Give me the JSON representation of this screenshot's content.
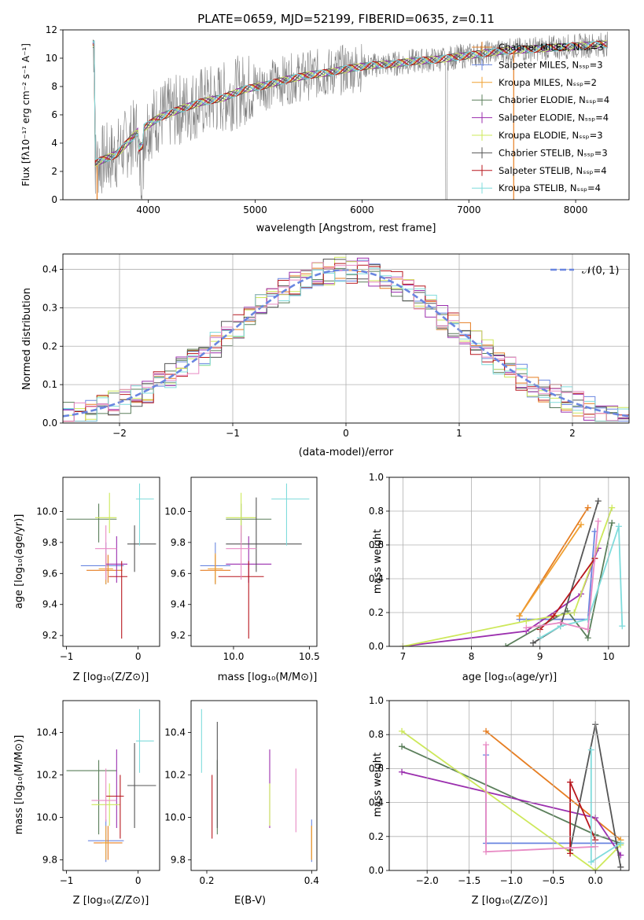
{
  "figure_title": "PLATE=0659, MJD=52199, FIBERID=0635, z=0.11",
  "series_colors": [
    "#6a86e0",
    "#e67e22",
    "#f0a030",
    "#5b7f5b",
    "#9b2fae",
    "#cde85a",
    "#555555",
    "#b8171e",
    "#7fdcdc",
    "#e88ac4"
  ],
  "chart_data": [
    {
      "id": "spectrum",
      "type": "line",
      "title": "PLATE=0659, MJD=52199, FIBERID=0635, z=0.11",
      "xlabel": "wavelength [Angstrom, rest frame]",
      "ylabel": "Flux [fλ10⁻¹⁷ erg cm⁻² s⁻¹ A⁻¹]",
      "xlim": [
        3200,
        8500
      ],
      "ylim": [
        0,
        12
      ],
      "xticks": [
        "4000",
        "5000",
        "6000",
        "7000",
        "8000"
      ],
      "yticks": [
        "0",
        "2",
        "4",
        "6",
        "8",
        "10",
        "12"
      ],
      "legend_position": "top-right",
      "data_continuum": {
        "x": [
          3500,
          3700,
          3900,
          4100,
          4300,
          4500,
          4700,
          4900,
          5100,
          5300,
          5500,
          5700,
          5900,
          6100,
          6300,
          6500,
          6700,
          6900,
          7100,
          7300,
          7500,
          7700,
          7900,
          8100,
          8300
        ],
        "y": [
          2.6,
          3.2,
          4.8,
          5.8,
          6.4,
          6.9,
          7.2,
          7.8,
          8.1,
          8.5,
          8.8,
          9.0,
          9.3,
          9.5,
          9.6,
          9.8,
          9.9,
          10.1,
          10.3,
          10.5,
          10.6,
          10.7,
          10.8,
          10.9,
          11.0
        ]
      },
      "legend": [
        "Chabrier MILES, Nₛₛₚ=3",
        "Salpeter MILES, Nₛₛₚ=3",
        "Kroupa MILES, Nₛₛₚ=2",
        "Chabrier ELODIE, Nₛₛₚ=4",
        "Salpeter ELODIE, Nₛₛₚ=4",
        "Kroupa ELODIE, Nₛₛₚ=3",
        "Chabrier STELIB, Nₛₛₚ=3",
        "Salpeter STELIB, Nₛₛₚ=4",
        "Kroupa STELIB, Nₛₛₚ=4"
      ]
    },
    {
      "id": "residuals",
      "type": "step",
      "xlabel": "(data-model)/error",
      "ylabel": "Normed distribution",
      "xlim": [
        -2.5,
        2.5
      ],
      "ylim": [
        0,
        0.44
      ],
      "xticks": [
        "−2",
        "−1",
        "0",
        "1",
        "2"
      ],
      "yticks": [
        "0.0",
        "0.1",
        "0.2",
        "0.3",
        "0.4"
      ],
      "grid": true,
      "legend_position": "top-right",
      "legend": [
        "𝒩(0, 1)"
      ],
      "bins": {
        "start": -2.5,
        "width": 0.1,
        "count": 50
      }
    },
    {
      "id": "z-age",
      "type": "errorbar",
      "xlabel": "Z [log₁₀(Z/Z⊙)]",
      "ylabel": "age  [log₁₀(age/yr)]",
      "xlim": [
        -1.05,
        0.3
      ],
      "ylim": [
        9.13,
        10.22
      ],
      "xticks": [
        "−1",
        "0"
      ],
      "yticks": [
        "9.2",
        "9.4",
        "9.6",
        "9.8",
        "10.0"
      ],
      "points": [
        {
          "x": -0.45,
          "xerr": [
            0.35,
            0.25
          ],
          "y": 9.65,
          "yerr": [
            0.12,
            0.15
          ]
        },
        {
          "x": -0.42,
          "xerr": [
            0.3,
            0.2
          ],
          "y": 9.62,
          "yerr": [
            0.08,
            0.1
          ]
        },
        {
          "x": -0.45,
          "xerr": [
            0.1,
            0.1
          ],
          "y": 9.63,
          "yerr": [
            0.1,
            0.1
          ]
        },
        {
          "x": -0.55,
          "xerr": [
            0.45,
            0.25
          ],
          "y": 9.95,
          "yerr": [
            0.15,
            0.1
          ]
        },
        {
          "x": -0.3,
          "xerr": [
            0.15,
            0.15
          ],
          "y": 9.66,
          "yerr": [
            0.12,
            0.18
          ]
        },
        {
          "x": -0.4,
          "xerr": [
            0.2,
            0.1
          ],
          "y": 9.96,
          "yerr": [
            0.1,
            0.16
          ]
        },
        {
          "x": -0.05,
          "xerr": [
            0.1,
            0.3
          ],
          "y": 9.79,
          "yerr": [
            0.18,
            0.12
          ]
        },
        {
          "x": -0.23,
          "xerr": [
            0.18,
            0.08
          ],
          "y": 9.58,
          "yerr": [
            0.4,
            0.1
          ]
        },
        {
          "x": 0.02,
          "xerr": [
            0.05,
            0.2
          ],
          "y": 10.08,
          "yerr": [
            0.3,
            0.1
          ]
        },
        {
          "x": -0.45,
          "xerr": [
            0.15,
            0.15
          ],
          "y": 9.76,
          "yerr": [
            0.2,
            0.15
          ]
        }
      ]
    },
    {
      "id": "mass-age",
      "type": "errorbar",
      "xlabel": "mass [log₁₀(M/M⊙)]",
      "xlim": [
        9.72,
        10.55
      ],
      "ylim": [
        9.13,
        10.22
      ],
      "xticks": [
        "10.0",
        "10.5"
      ],
      "yticks": [
        "9.2",
        "9.4",
        "9.6",
        "9.8",
        "10.0"
      ],
      "points": [
        {
          "x": 9.88,
          "xerr": [
            0.1,
            0.1
          ],
          "y": 9.65,
          "yerr": [
            0.12,
            0.15
          ]
        },
        {
          "x": 9.88,
          "xerr": [
            0.1,
            0.1
          ],
          "y": 9.62,
          "yerr": [
            0.08,
            0.1
          ]
        },
        {
          "x": 9.88,
          "xerr": [
            0.05,
            0.05
          ],
          "y": 9.63,
          "yerr": [
            0.1,
            0.1
          ]
        },
        {
          "x": 10.05,
          "xerr": [
            0.1,
            0.2
          ],
          "y": 9.95,
          "yerr": [
            0.15,
            0.1
          ]
        },
        {
          "x": 10.1,
          "xerr": [
            0.15,
            0.15
          ],
          "y": 9.66,
          "yerr": [
            0.12,
            0.18
          ]
        },
        {
          "x": 10.05,
          "xerr": [
            0.1,
            0.1
          ],
          "y": 9.96,
          "yerr": [
            0.1,
            0.16
          ]
        },
        {
          "x": 10.15,
          "xerr": [
            0.2,
            0.3
          ],
          "y": 9.79,
          "yerr": [
            0.18,
            0.3
          ]
        },
        {
          "x": 10.1,
          "xerr": [
            0.2,
            0.1
          ],
          "y": 9.58,
          "yerr": [
            0.4,
            0.1
          ]
        },
        {
          "x": 10.35,
          "xerr": [
            0.1,
            0.15
          ],
          "y": 10.08,
          "yerr": [
            0.3,
            0.1
          ]
        },
        {
          "x": 10.05,
          "xerr": [
            0.1,
            0.1
          ],
          "y": 9.76,
          "yerr": [
            0.2,
            0.15
          ]
        }
      ]
    },
    {
      "id": "age-weight",
      "type": "line",
      "xlabel": "age  [log₁₀(age/yr)]",
      "ylabel": "mass weight",
      "xlim": [
        6.8,
        10.3
      ],
      "ylim": [
        0,
        1
      ],
      "xticks": [
        "7",
        "8",
        "9",
        "10"
      ],
      "yticks": [
        "0.0",
        "0.2",
        "0.4",
        "0.6",
        "0.8",
        "1.0"
      ],
      "grid": true,
      "series": [
        {
          "x": [
            8.7,
            9.7,
            9.8
          ],
          "y": [
            0.16,
            0.16,
            0.68
          ]
        },
        {
          "x": [
            8.7,
            9.7
          ],
          "y": [
            0.18,
            0.82
          ]
        },
        {
          "x": [
            8.7,
            9.6
          ],
          "y": [
            0.18,
            0.72
          ]
        },
        {
          "x": [
            8.5,
            9.4,
            9.7,
            10.05
          ],
          "y": [
            0.0,
            0.21,
            0.05,
            0.73
          ]
        },
        {
          "x": [
            7.0,
            8.8,
            9.6,
            9.85
          ],
          "y": [
            0.0,
            0.09,
            0.31,
            0.58
          ]
        },
        {
          "x": [
            7.0,
            8.8,
            9.5,
            10.05
          ],
          "y": [
            0.0,
            0.15,
            0.2,
            0.82
          ]
        },
        {
          "x": [
            8.9,
            9.3,
            9.85
          ],
          "y": [
            0.02,
            0.12,
            0.86
          ]
        },
        {
          "x": [
            9.0,
            9.2,
            9.8
          ],
          "y": [
            0.1,
            0.18,
            0.52
          ]
        },
        {
          "x": [
            9.0,
            9.3,
            9.7,
            10.15,
            10.2
          ],
          "y": [
            0.05,
            0.12,
            0.16,
            0.71,
            0.12
          ]
        },
        {
          "x": [
            8.8,
            9.3,
            9.7,
            9.85
          ],
          "y": [
            0.11,
            0.14,
            0.1,
            0.74
          ]
        }
      ]
    },
    {
      "id": "z-mass",
      "type": "errorbar",
      "xlabel": "Z [log₁₀(Z/Z⊙)]",
      "ylabel": "mass [log₁₀(M/M⊙)]",
      "xlim": [
        -1.05,
        0.3
      ],
      "ylim": [
        9.75,
        10.55
      ],
      "xticks": [
        "−1",
        "0"
      ],
      "yticks": [
        "9.8",
        "10.0",
        "10.2",
        "10.4"
      ],
      "points": [
        {
          "x": -0.45,
          "xerr": [
            0.25,
            0.25
          ],
          "y": 9.89,
          "yerr": [
            0.1,
            0.1
          ]
        },
        {
          "x": -0.42,
          "xerr": [
            0.2,
            0.2
          ],
          "y": 9.88,
          "yerr": [
            0.08,
            0.08
          ]
        },
        {
          "x": -0.45,
          "xerr": [
            0.05,
            0.05
          ],
          "y": 9.88,
          "yerr": [
            0.08,
            0.08
          ]
        },
        {
          "x": -0.55,
          "xerr": [
            0.45,
            0.25
          ],
          "y": 10.22,
          "yerr": [
            0.3,
            0.05
          ]
        },
        {
          "x": -0.3,
          "xerr": [
            0.1,
            0.1
          ],
          "y": 10.1,
          "yerr": [
            0.15,
            0.22
          ]
        },
        {
          "x": -0.4,
          "xerr": [
            0.25,
            0.15
          ],
          "y": 10.06,
          "yerr": [
            0.1,
            0.1
          ]
        },
        {
          "x": -0.05,
          "xerr": [
            0.1,
            0.3
          ],
          "y": 10.15,
          "yerr": [
            0.2,
            0.2
          ]
        },
        {
          "x": -0.25,
          "xerr": [
            0.2,
            0.05
          ],
          "y": 10.1,
          "yerr": [
            0.2,
            0.1
          ]
        },
        {
          "x": 0.02,
          "xerr": [
            0.05,
            0.2
          ],
          "y": 10.36,
          "yerr": [
            0.15,
            0.15
          ]
        },
        {
          "x": -0.45,
          "xerr": [
            0.2,
            0.15
          ],
          "y": 10.08,
          "yerr": [
            0.1,
            0.15
          ]
        }
      ]
    },
    {
      "id": "ebv-mass",
      "type": "errorbar",
      "xlabel": "E(B-V)",
      "xlim": [
        0.17,
        0.41
      ],
      "ylim": [
        9.75,
        10.55
      ],
      "xticks": [
        "0.2",
        "0.4"
      ],
      "yticks": [
        "9.8",
        "10.0",
        "10.2",
        "10.4"
      ],
      "points": [
        {
          "x": 0.4,
          "yerr": [
            0.1,
            0.1
          ],
          "y": 9.89
        },
        {
          "x": 0.4,
          "yerr": [
            0.08,
            0.08
          ],
          "y": 9.88
        },
        {
          "x": 0.4,
          "yerr": [
            0.08,
            0.08
          ],
          "y": 9.88
        },
        {
          "x": 0.22,
          "yerr": [
            0.3,
            0.05
          ],
          "y": 10.22
        },
        {
          "x": 0.32,
          "yerr": [
            0.15,
            0.22
          ],
          "y": 10.1
        },
        {
          "x": 0.32,
          "yerr": [
            0.1,
            0.1
          ],
          "y": 10.06
        },
        {
          "x": 0.22,
          "yerr": [
            0.2,
            0.3
          ],
          "y": 10.15
        },
        {
          "x": 0.21,
          "yerr": [
            0.2,
            0.1
          ],
          "y": 10.1
        },
        {
          "x": 0.19,
          "yerr": [
            0.15,
            0.15
          ],
          "y": 10.36
        },
        {
          "x": 0.37,
          "yerr": [
            0.15,
            0.15
          ],
          "y": 10.08
        }
      ]
    },
    {
      "id": "z-weight",
      "type": "line",
      "xlabel": "Z [log₁₀(Z/Z⊙)]",
      "ylabel": "mass weight",
      "xlim": [
        -2.45,
        0.4
      ],
      "ylim": [
        0,
        1
      ],
      "xticks": [
        "−2.0",
        "−1.5",
        "−1.0",
        "−0.5",
        "0.0"
      ],
      "yticks": [
        "0.0",
        "0.2",
        "0.4",
        "0.6",
        "0.8",
        "1.0"
      ],
      "grid": true,
      "series": [
        {
          "x": [
            -1.3,
            -1.3,
            0.3
          ],
          "y": [
            0.68,
            0.16,
            0.16
          ]
        },
        {
          "x": [
            -1.3,
            0.3
          ],
          "y": [
            0.82,
            0.18
          ]
        },
        {
          "x": [
            0.3,
            0.3
          ],
          "y": [
            0.18,
            0.16
          ]
        },
        {
          "x": [
            -2.3,
            0.0,
            0.3
          ],
          "y": [
            0.73,
            0.21,
            0.16
          ]
        },
        {
          "x": [
            -2.3,
            0.0,
            0.3
          ],
          "y": [
            0.58,
            0.31,
            0.09
          ]
        },
        {
          "x": [
            -2.3,
            0.0,
            0.3
          ],
          "y": [
            0.82,
            0.0,
            0.15
          ]
        },
        {
          "x": [
            -0.3,
            0.0,
            0.3
          ],
          "y": [
            0.12,
            0.86,
            0.02
          ]
        },
        {
          "x": [
            -0.3,
            -0.3,
            0.0
          ],
          "y": [
            0.1,
            0.52,
            0.18
          ]
        },
        {
          "x": [
            -0.05,
            -0.05,
            0.3
          ],
          "y": [
            0.71,
            0.05,
            0.16
          ]
        },
        {
          "x": [
            -1.3,
            -1.3,
            0.0
          ],
          "y": [
            0.74,
            0.11,
            0.14
          ]
        }
      ]
    }
  ]
}
